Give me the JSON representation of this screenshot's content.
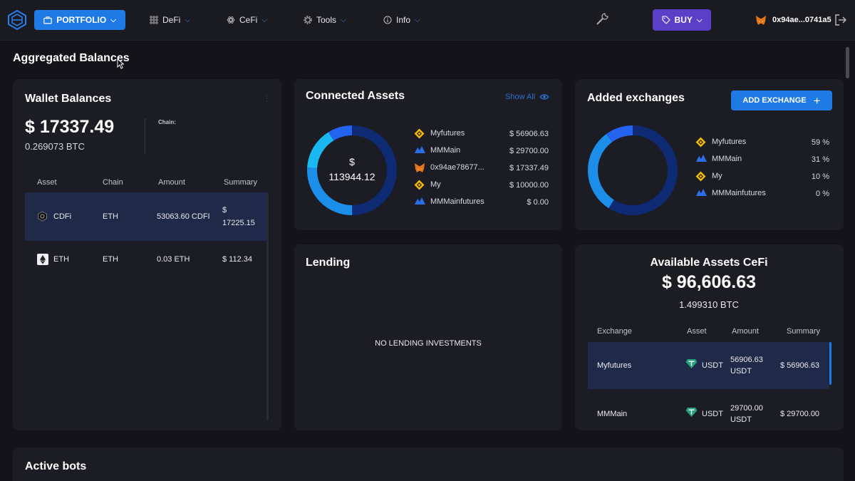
{
  "nav": {
    "portfolio": "PORTFOLIO",
    "defi": "DeFi",
    "cefi": "CeFi",
    "tools": "Tools",
    "info": "Info",
    "buy": "BUY",
    "wallet_address": "0x94ae...0741a5"
  },
  "page": {
    "title": "Aggregated Balances"
  },
  "wallet_balances": {
    "title": "Wallet Balances",
    "total": "$ 17337.49",
    "btc": "0.269073 BTC",
    "chain_label": "Chain:",
    "columns": [
      "Asset",
      "Chain",
      "Amount",
      "Summary"
    ],
    "rows": [
      {
        "asset": "CDFi",
        "chain": "ETH",
        "amount": "53063.60 CDFI",
        "summary_1": "$",
        "summary_2": "17225.15"
      },
      {
        "asset": "ETH",
        "chain": "ETH",
        "amount": "0.03 ETH",
        "summary_1": "$ 112.34",
        "summary_2": ""
      }
    ]
  },
  "connected_assets": {
    "title": "Connected Assets",
    "show_all": "Show All",
    "center_label_1": "$",
    "center_label_2": "113944.12",
    "items": [
      {
        "name": "Myfutures",
        "value": "$ 56906.63",
        "icon": "binance-icon"
      },
      {
        "name": "MMMain",
        "value": "$ 29700.00",
        "icon": "cloud-icon"
      },
      {
        "name": "0x94ae78677...",
        "value": "$ 17337.49",
        "icon": "metamask-icon"
      },
      {
        "name": "My",
        "value": "$ 10000.00",
        "icon": "binance-icon"
      },
      {
        "name": "MMMainfutures",
        "value": "$ 0.00",
        "icon": "cloud-icon"
      }
    ],
    "chart_values": [
      56906.63,
      29700.0,
      17337.49,
      10000.0,
      0.0
    ]
  },
  "added_exchanges": {
    "title": "Added exchanges",
    "add_button": "ADD EXCHANGE",
    "items": [
      {
        "name": "Myfutures",
        "value": "59 %",
        "icon": "binance-icon"
      },
      {
        "name": "MMMain",
        "value": "31 %",
        "icon": "cloud-icon"
      },
      {
        "name": "My",
        "value": "10 %",
        "icon": "binance-icon"
      },
      {
        "name": "MMMainfutures",
        "value": "0 %",
        "icon": "cloud-icon"
      }
    ],
    "chart_values": [
      59,
      31,
      10,
      0
    ]
  },
  "lending": {
    "title": "Lending",
    "empty": "NO LENDING INVESTMENTS"
  },
  "available_assets": {
    "title": "Available Assets CeFi",
    "total": "$ 96,606.63",
    "btc": "1.499310 BTC",
    "columns": [
      "Exchange",
      "Asset",
      "Amount",
      "Summary"
    ],
    "rows": [
      {
        "exchange": "Myfutures",
        "asset": "USDT",
        "amount_1": "56906.63",
        "amount_2": "USDT",
        "summary": "$ 56906.63"
      },
      {
        "exchange": "MMMain",
        "asset": "USDT",
        "amount_1": "29700.00",
        "amount_2": "USDT",
        "summary": "$ 29700.00"
      }
    ]
  },
  "active_bots": {
    "title": "Active bots"
  },
  "colors": {
    "accent": "#1f7ae6",
    "buy": "#5a40c9",
    "donut_dark": "#0d2a73",
    "donut_mid": "#1a8ee8",
    "donut_light": "#1ab8f0",
    "donut_blue": "#2462f0"
  }
}
